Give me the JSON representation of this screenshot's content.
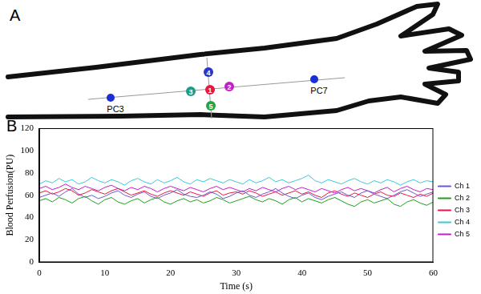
{
  "diagram": {
    "panel_label": "A",
    "points": [
      {
        "label": "1",
        "color": "#e8173f"
      },
      {
        "label": "2",
        "color": "#c21fc9"
      },
      {
        "label": "3",
        "color": "#1b9c86"
      },
      {
        "label": "4",
        "color": "#2a36c8"
      },
      {
        "label": "5",
        "color": "#22a63a"
      },
      {
        "label": "PC3",
        "color": "#1a2fd6"
      },
      {
        "label": "PC7",
        "color": "#1a2fd6"
      }
    ]
  },
  "chart_data": {
    "panel_label": "B",
    "type": "line",
    "x_label": "Time (s)",
    "y_label": "Blood Perfusion(PU)",
    "x": [
      0,
      1,
      2,
      3,
      4,
      5,
      6,
      7,
      8,
      9,
      10,
      11,
      12,
      13,
      14,
      15,
      16,
      17,
      18,
      19,
      20,
      21,
      22,
      23,
      24,
      25,
      26,
      27,
      28,
      29,
      30,
      31,
      32,
      33,
      34,
      35,
      36,
      37,
      38,
      39,
      40,
      41,
      42,
      43,
      44,
      45,
      46,
      47,
      48,
      49,
      50,
      51,
      52,
      53,
      54,
      55,
      56,
      57,
      58,
      59,
      60
    ],
    "series": [
      {
        "name": "Ch 1",
        "color": "#6a5acd",
        "values": [
          58,
          60,
          62,
          59,
          63,
          66,
          61,
          58,
          60,
          57,
          59,
          62,
          64,
          60,
          58,
          61,
          63,
          59,
          57,
          60,
          62,
          65,
          61,
          59,
          58,
          60,
          63,
          61,
          57,
          59,
          62,
          64,
          60,
          58,
          61,
          63,
          66,
          62,
          59,
          57,
          60,
          62,
          58,
          56,
          59,
          61,
          63,
          60,
          58,
          62,
          64,
          61,
          59,
          57,
          60,
          63,
          65,
          62,
          59,
          61,
          63
        ]
      },
      {
        "name": "Ch 2",
        "color": "#1f9e1f",
        "values": [
          55,
          57,
          54,
          58,
          56,
          53,
          57,
          59,
          55,
          52,
          56,
          58,
          54,
          52,
          55,
          57,
          53,
          56,
          58,
          54,
          52,
          55,
          57,
          54,
          56,
          53,
          55,
          58,
          56,
          53,
          55,
          57,
          59,
          56,
          54,
          57,
          55,
          52,
          56,
          58,
          54,
          57,
          55,
          53,
          56,
          58,
          55,
          52,
          50,
          54,
          56,
          53,
          55,
          57,
          52,
          50,
          54,
          56,
          53,
          51,
          54
        ]
      },
      {
        "name": "Ch 3",
        "color": "#e8173f",
        "values": [
          62,
          64,
          61,
          63,
          66,
          64,
          60,
          62,
          65,
          63,
          61,
          64,
          66,
          63,
          60,
          62,
          64,
          61,
          59,
          62,
          64,
          62,
          60,
          63,
          61,
          59,
          62,
          64,
          60,
          62,
          63,
          61,
          64,
          62,
          59,
          61,
          63,
          60,
          62,
          64,
          61,
          63,
          60,
          58,
          62,
          64,
          61,
          59,
          62,
          60,
          58,
          61,
          63,
          60,
          59,
          62,
          60,
          58,
          61,
          59,
          62
        ]
      },
      {
        "name": "Ch 4",
        "color": "#3cc8d8",
        "values": [
          70,
          73,
          71,
          75,
          72,
          74,
          70,
          72,
          76,
          73,
          71,
          74,
          72,
          69,
          73,
          75,
          72,
          70,
          74,
          71,
          73,
          76,
          72,
          70,
          74,
          72,
          75,
          73,
          71,
          74,
          72,
          70,
          74,
          71,
          73,
          76,
          72,
          74,
          71,
          73,
          75,
          78,
          73,
          71,
          74,
          72,
          70,
          73,
          75,
          72,
          70,
          73,
          71,
          74,
          72,
          69,
          72,
          74,
          71,
          73,
          72
        ]
      },
      {
        "name": "Ch 5",
        "color": "#c21fc9",
        "values": [
          66,
          68,
          65,
          67,
          70,
          67,
          65,
          68,
          66,
          64,
          67,
          69,
          66,
          64,
          67,
          65,
          68,
          66,
          63,
          66,
          68,
          66,
          64,
          67,
          65,
          63,
          66,
          68,
          65,
          67,
          65,
          63,
          66,
          64,
          67,
          65,
          63,
          66,
          68,
          65,
          67,
          65,
          63,
          66,
          64,
          62,
          65,
          67,
          64,
          66,
          64,
          62,
          65,
          67,
          63,
          66,
          68,
          65,
          63,
          66,
          65
        ]
      }
    ],
    "xlim": [
      0,
      60
    ],
    "xticks": [
      0,
      10,
      20,
      30,
      40,
      50,
      60
    ],
    "ylim": [
      0,
      120
    ],
    "yticks": [
      0,
      20,
      40,
      60,
      80,
      100,
      120
    ],
    "grid": false,
    "legend": "right"
  }
}
